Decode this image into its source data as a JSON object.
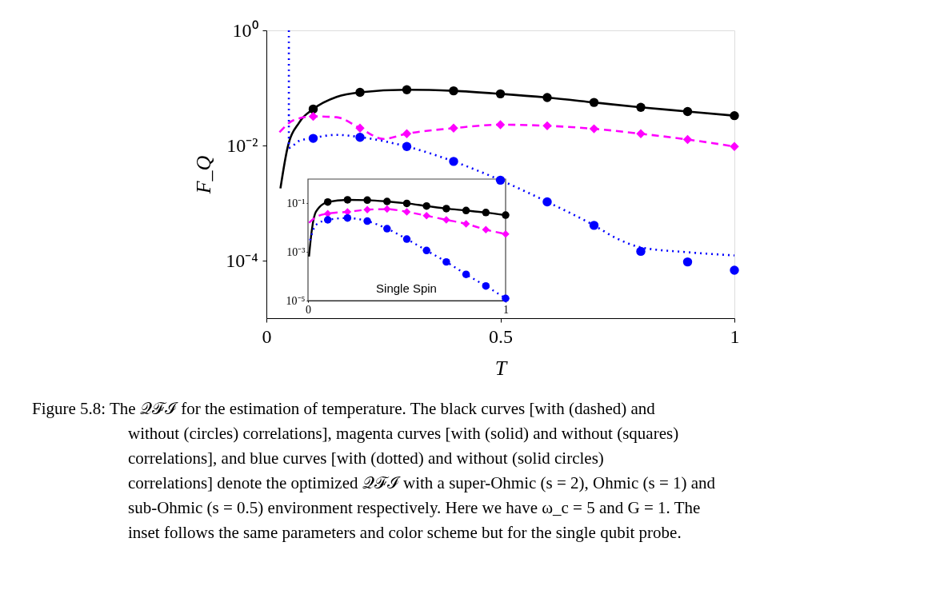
{
  "chart_data": [
    {
      "type": "line",
      "xlabel": "T",
      "ylabel": "F_Q",
      "log": true,
      "grid": false,
      "xlim": [
        0,
        1
      ],
      "ylim": [
        1e-05,
        1
      ],
      "xticks": [
        0,
        0.5,
        1
      ],
      "yticks": [
        {
          "value": 1,
          "label": "10⁰"
        },
        {
          "value": 0.01,
          "label": "10⁻²"
        },
        {
          "value": 0.0001,
          "label": "10⁻⁴"
        }
      ],
      "annotations": [
        "Figure 5.8: The 𝒬ℱℐ for the estimation of temperature. The black curves [with (dashed) and without (circles) correlations], magenta curves [with (solid) and without (squares) correlations], and blue curves [with (dotted) and without (solid circles) correlations] denote the optimized 𝒬ℱℐ with a super-Ohmic (s = 2), Ohmic (s = 1) and sub-Ohmic (s = 0.5) environment respectively. Here we have ω_c = 5 and G = 1. The inset follows the same parameters and color scheme but for the single qubit probe."
      ],
      "series": [
        {
          "color": "#000000",
          "line_style": "solid",
          "x": [
            0.03,
            0.045,
            0.07,
            0.1,
            0.15,
            0.2,
            0.3,
            0.4,
            0.5,
            0.6,
            0.7,
            0.8,
            0.9,
            1.0
          ],
          "values": [
            0.0018,
            0.009,
            0.025,
            0.043,
            0.07,
            0.084,
            0.093,
            0.089,
            0.079,
            0.068,
            0.056,
            0.046,
            0.039,
            0.033
          ]
        },
        {
          "color": "#ff00ff",
          "line_style": "dashed",
          "x": [
            0.028,
            0.06,
            0.1,
            0.15,
            0.2,
            0.25,
            0.3,
            0.4,
            0.5,
            0.6,
            0.7,
            0.8,
            0.9,
            1.0
          ],
          "values": [
            0.017,
            0.028,
            0.032,
            0.031,
            0.02,
            0.013,
            0.016,
            0.02,
            0.023,
            0.022,
            0.0195,
            0.016,
            0.0127,
            0.0096
          ]
        },
        {
          "color": "#0000ff",
          "line_style": "dotted",
          "x": [
            0.048,
            0.048,
            0.07,
            0.1,
            0.15,
            0.2,
            0.3,
            0.4,
            0.5,
            0.6,
            0.7,
            0.75,
            0.8,
            0.9,
            1.0
          ],
          "values": [
            1,
            0.0091,
            0.012,
            0.0135,
            0.0153,
            0.014,
            0.0096,
            0.0053,
            0.0025,
            0.00105,
            0.00041,
            0.00024,
            0.00017,
            0.00014,
            0.000123
          ]
        },
        {
          "type": "scatter",
          "color": "#000000",
          "marker": "circle",
          "x": [
            0.1,
            0.2,
            0.3,
            0.4,
            0.5,
            0.6,
            0.7,
            0.8,
            0.9,
            1.0
          ],
          "values": [
            0.043,
            0.084,
            0.093,
            0.089,
            0.079,
            0.068,
            0.056,
            0.046,
            0.039,
            0.033
          ]
        },
        {
          "type": "scatter",
          "color": "#ff00ff",
          "marker": "diamond",
          "x": [
            0.1,
            0.2,
            0.3,
            0.4,
            0.5,
            0.6,
            0.7,
            0.8,
            0.9,
            1.0
          ],
          "values": [
            0.032,
            0.02,
            0.016,
            0.02,
            0.023,
            0.022,
            0.0195,
            0.016,
            0.0127,
            0.0096
          ]
        },
        {
          "type": "scatter",
          "color": "#0000ff",
          "marker": "circle",
          "x": [
            0.1,
            0.2,
            0.3,
            0.4,
            0.5,
            0.6,
            0.7,
            0.8,
            0.9,
            1.0
          ],
          "values": [
            0.0133,
            0.0139,
            0.0096,
            0.0053,
            0.0025,
            0.00105,
            0.00041,
            0.000145,
            9.5e-05,
            6.8e-05
          ]
        }
      ]
    },
    {
      "type": "line",
      "log": true,
      "grid": false,
      "xlim": [
        0,
        1
      ],
      "ylim": [
        1e-05,
        1
      ],
      "xticks": [
        0,
        1
      ],
      "yticks": [
        {
          "value": 0.1,
          "label": "10⁻¹"
        },
        {
          "value": 0.001,
          "label": "10⁻³"
        },
        {
          "value": 1e-05,
          "label": "10⁻⁵"
        }
      ],
      "annotations": [
        "Single Spin"
      ],
      "series": [
        {
          "color": "#000000",
          "line_style": "solid",
          "x": [
            0.005,
            0.02,
            0.04,
            0.1,
            0.2,
            0.3,
            0.4,
            0.5,
            0.6,
            0.7,
            0.8,
            0.9,
            1.0
          ],
          "values": [
            0.00065,
            0.0087,
            0.045,
            0.114,
            0.14,
            0.136,
            0.12,
            0.1,
            0.078,
            0.061,
            0.051,
            0.042,
            0.033
          ]
        },
        {
          "color": "#ff00ff",
          "line_style": "dashed",
          "x": [
            0.005,
            0.05,
            0.1,
            0.2,
            0.3,
            0.4,
            0.5,
            0.6,
            0.7,
            0.8,
            0.9,
            1.0
          ],
          "values": [
            0.016,
            0.03,
            0.038,
            0.045,
            0.055,
            0.058,
            0.045,
            0.031,
            0.021,
            0.0144,
            0.0083,
            0.0055
          ]
        },
        {
          "color": "#0000ff",
          "line_style": "dotted",
          "x": [
            0.01,
            0.04,
            0.1,
            0.2,
            0.3,
            0.4,
            0.5,
            0.6,
            0.7,
            0.8,
            0.9,
            1.0
          ],
          "values": [
            0.003,
            0.013,
            0.021,
            0.025,
            0.0186,
            0.0091,
            0.0034,
            0.00115,
            0.00039,
            0.00012,
            4e-05,
            1.23e-05
          ]
        },
        {
          "type": "scatter",
          "color": "#000000",
          "marker": "circle",
          "x": [
            0.1,
            0.2,
            0.3,
            0.4,
            0.5,
            0.6,
            0.7,
            0.8,
            0.9,
            1.0
          ],
          "values": [
            0.114,
            0.14,
            0.136,
            0.12,
            0.1,
            0.078,
            0.061,
            0.051,
            0.042,
            0.033
          ]
        },
        {
          "type": "scatter",
          "color": "#ff00ff",
          "marker": "diamond",
          "x": [
            0.1,
            0.2,
            0.3,
            0.4,
            0.5,
            0.6,
            0.7,
            0.8,
            0.9,
            1.0
          ],
          "values": [
            0.038,
            0.045,
            0.055,
            0.058,
            0.045,
            0.031,
            0.021,
            0.0144,
            0.0083,
            0.0055
          ]
        },
        {
          "type": "scatter",
          "color": "#0000ff",
          "marker": "circle",
          "x": [
            0.1,
            0.2,
            0.3,
            0.4,
            0.5,
            0.6,
            0.7,
            0.8,
            0.9,
            1.0
          ],
          "values": [
            0.021,
            0.025,
            0.0186,
            0.0091,
            0.0034,
            0.00115,
            0.00039,
            0.00012,
            4e-05,
            1.23e-05
          ]
        }
      ]
    }
  ]
}
